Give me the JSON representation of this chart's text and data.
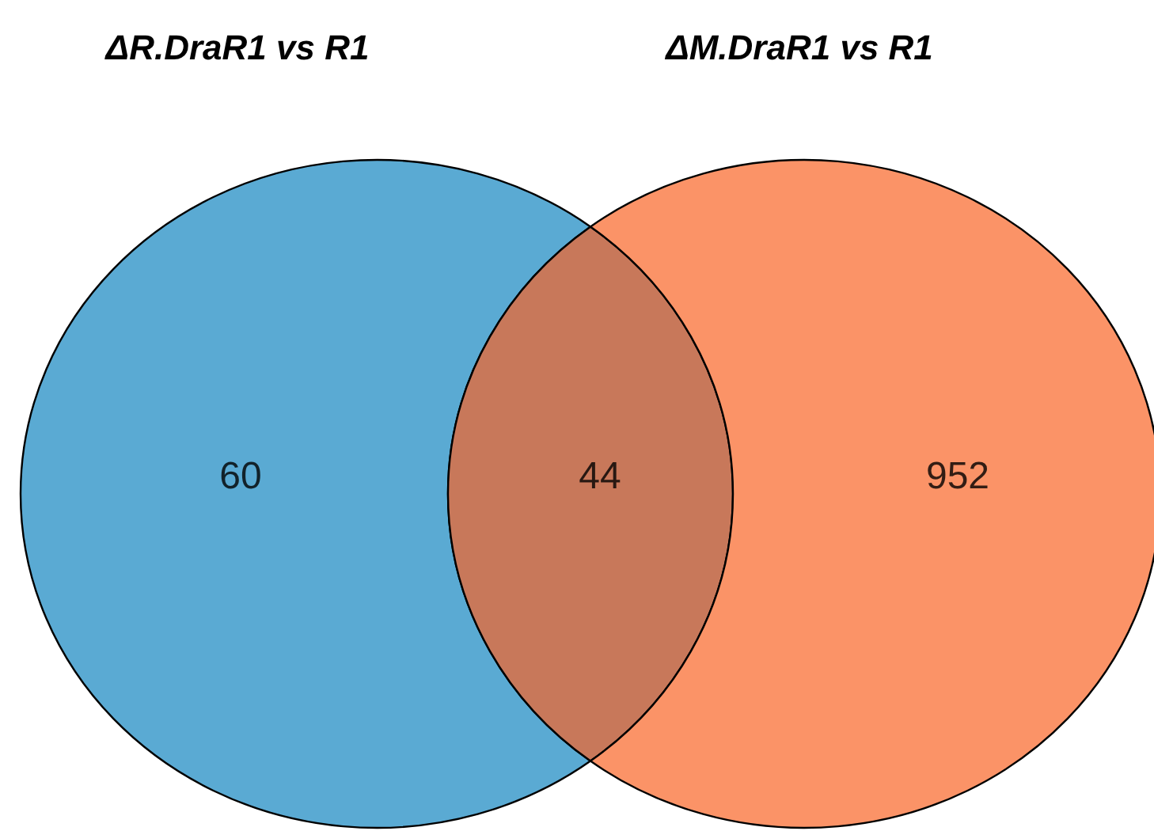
{
  "chart_data": {
    "type": "other",
    "annotations": [
      "ΔR.DraR1 vs R1",
      "ΔM.DraR1 vs R1"
    ],
    "categories": [
      null,
      null,
      null
    ],
    "values": [
      60,
      44,
      952
    ],
    "colors": [
      "#5aaad3",
      "#c8785a",
      "#fb9367"
    ],
    "data_labels": true
  }
}
